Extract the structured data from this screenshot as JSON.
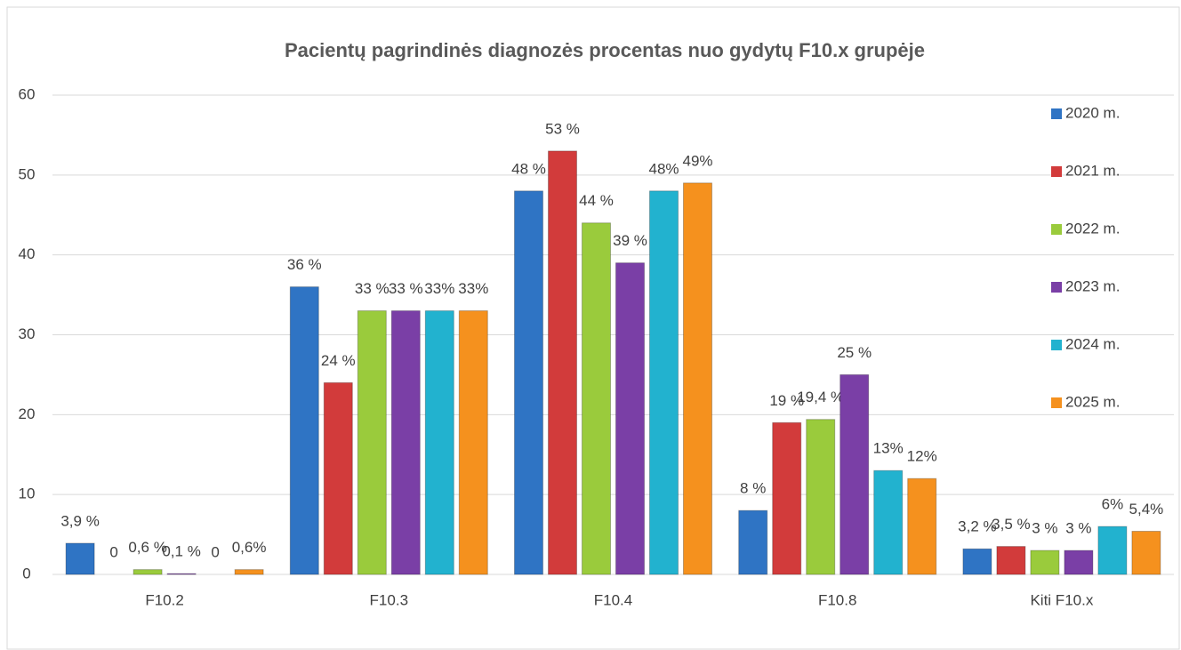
{
  "chart_data": {
    "type": "bar",
    "title": "Pacientų pagrindinės diagnozės procentas nuo gydytų F10.x grupėje",
    "categories": [
      "F10.2",
      "F10.3",
      "F10.4",
      "F10.8",
      "Kiti F10.x"
    ],
    "series": [
      {
        "name": "2020 m.",
        "color": "#2f74c4",
        "values": [
          3.9,
          36,
          48,
          8,
          3.2
        ],
        "value_labels": [
          "3,9 %",
          "36 %",
          "48 %",
          "8 %",
          "3,2 %"
        ]
      },
      {
        "name": "2021 m.",
        "color": "#d23b3b",
        "values": [
          0,
          24,
          53,
          19,
          3.5
        ],
        "value_labels": [
          "0",
          "24 %",
          "53 %",
          "19 %",
          "3,5 %"
        ]
      },
      {
        "name": "2022 m.",
        "color": "#9acb3c",
        "values": [
          0.6,
          33,
          44,
          19.4,
          3
        ],
        "value_labels": [
          "0,6 %",
          "33 %",
          "44 %",
          "19,4 %",
          "3 %"
        ]
      },
      {
        "name": "2023 m.",
        "color": "#7a3fa6",
        "values": [
          0.1,
          33,
          39,
          25,
          3
        ],
        "value_labels": [
          "0,1 %",
          "33 %",
          "39 %",
          "25 %",
          "3 %"
        ]
      },
      {
        "name": "2024 m.",
        "color": "#22b2cf",
        "values": [
          0,
          33,
          48,
          13,
          6
        ],
        "value_labels": [
          "0",
          "33%",
          "48%",
          "13%",
          "6%"
        ]
      },
      {
        "name": "2025 m.",
        "color": "#f5911e",
        "values": [
          0.6,
          33,
          49,
          12,
          5.4
        ],
        "value_labels": [
          "0,6%",
          "33%",
          "49%",
          "12%",
          "5,4%"
        ]
      }
    ],
    "ylim": [
      0,
      60
    ],
    "yticks": [
      0,
      10,
      20,
      30,
      40,
      50,
      60
    ],
    "grid": true,
    "legend": "right"
  }
}
